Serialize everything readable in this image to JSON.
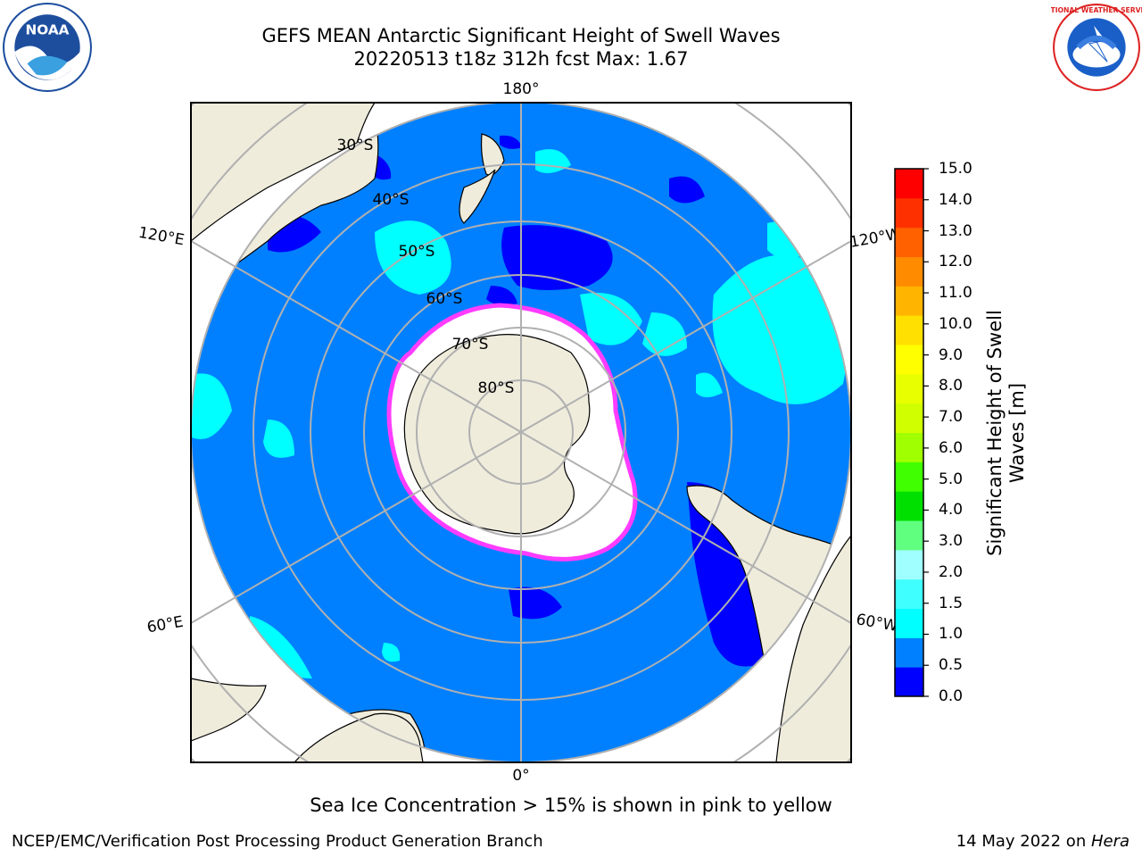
{
  "title": {
    "line1": "GEFS MEAN Antarctic Significant Height of Swell Waves",
    "line2": "20220513 t18z 312h fcst   Max: 1.67"
  },
  "map": {
    "projection": "south-polar-stereographic",
    "lon_labels": [
      "180°",
      "120°E",
      "120°W",
      "60°E",
      "60°W",
      "0°"
    ],
    "lat_labels": [
      "30°S",
      "40°S",
      "50°S",
      "60°S",
      "70°S",
      "80°S"
    ],
    "colors": {
      "land": "#efecdc",
      "ocean_lowest": "#0000ff",
      "ocean": "#0080ff",
      "swell_1_1p5": "#00ffff",
      "ice": "#ffffff",
      "ice_edge": "#ff3cff",
      "grid": "#b0b0b0"
    }
  },
  "colorbar": {
    "label_line1": "Significant Height of Swell",
    "label_line2": "Waves [m]",
    "ticks": [
      "15.0",
      "14.0",
      "13.0",
      "12.0",
      "11.0",
      "10.0",
      "9.0",
      "8.0",
      "7.0",
      "6.0",
      "5.0",
      "4.0",
      "3.0",
      "2.0",
      "1.5",
      "1.0",
      "0.5",
      "0.0"
    ],
    "colors": [
      "#0000ff",
      "#0080ff",
      "#00ffff",
      "#40ffff",
      "#a0ffff",
      "#60ff80",
      "#00e000",
      "#40ff00",
      "#a0ff00",
      "#d0ff00",
      "#e8ff00",
      "#ffff00",
      "#ffe000",
      "#ffb400",
      "#ff8c00",
      "#ff6000",
      "#ff3000",
      "#ff0000"
    ]
  },
  "logos": {
    "noaa_text": "NOAA",
    "nws_text": "NATIONAL WEATHER SERVICE"
  },
  "footer": {
    "note": "Sea Ice Concentration > 15% is shown in pink to yellow",
    "left": "NCEP/EMC/Verification Post Processing Product Generation Branch",
    "right_prefix": "14 May 2022 on ",
    "right_host": "Hera"
  }
}
